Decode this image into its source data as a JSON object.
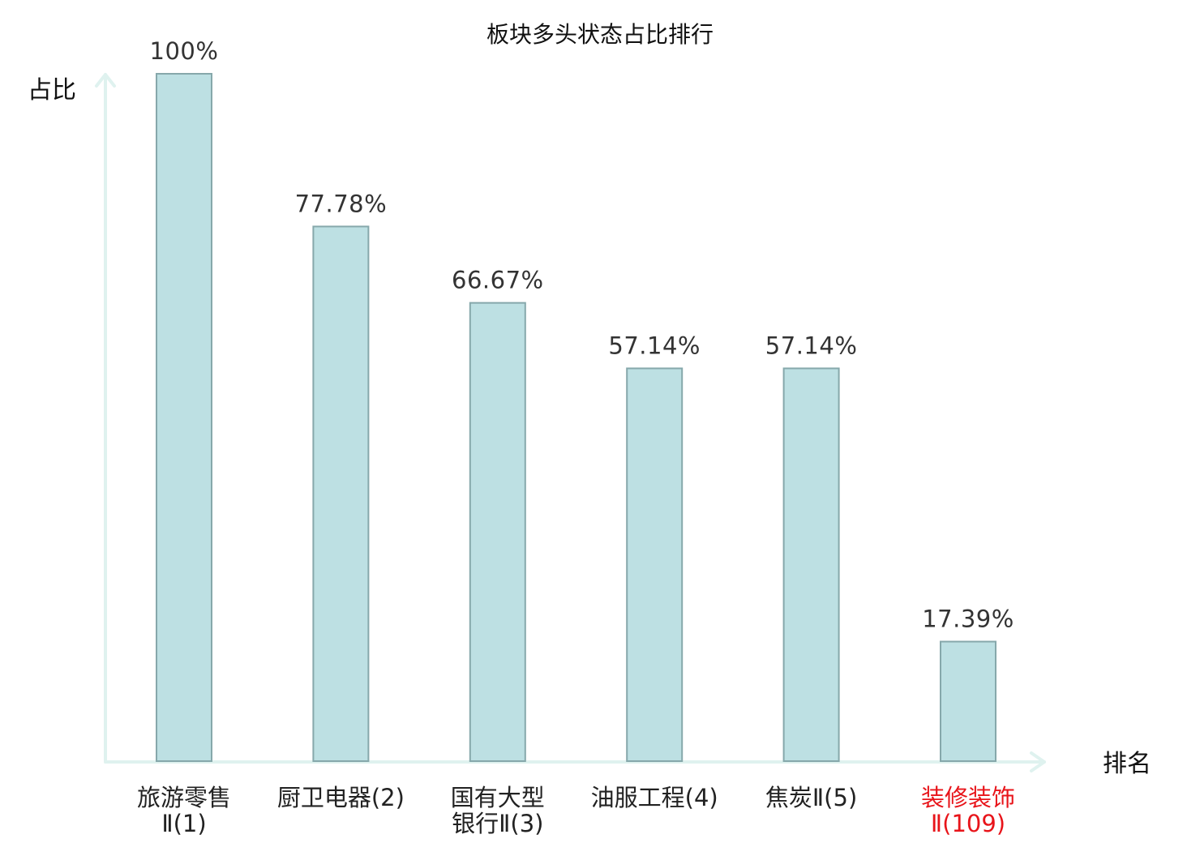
{
  "chart_data": {
    "type": "bar",
    "title": "板块多头状态占比排行",
    "ylabel": "占比",
    "xlabel": "排名",
    "ylim": [
      0,
      100
    ],
    "grid": false,
    "categories": [
      {
        "lines": [
          "旅游零售",
          "Ⅱ(1)"
        ],
        "highlight": false
      },
      {
        "lines": [
          "厨卫电器(2)"
        ],
        "highlight": false
      },
      {
        "lines": [
          "国有大型",
          "银行Ⅱ(3)"
        ],
        "highlight": false
      },
      {
        "lines": [
          "油服工程(4)"
        ],
        "highlight": false
      },
      {
        "lines": [
          "焦炭Ⅱ(5)"
        ],
        "highlight": false
      },
      {
        "lines": [
          "装修装饰",
          "Ⅱ(109)"
        ],
        "highlight": true
      }
    ],
    "values": [
      100,
      77.78,
      66.67,
      57.14,
      57.14,
      17.39
    ],
    "value_labels": [
      "100%",
      "77.78%",
      "66.67%",
      "57.14%",
      "57.14%",
      "17.39%"
    ],
    "colors": {
      "bar_fill": "#bde0e3",
      "bar_stroke": "#86a8ab",
      "axis": "#dff2ef",
      "highlight_text": "#e8141a",
      "normal_text": "#222222"
    }
  }
}
